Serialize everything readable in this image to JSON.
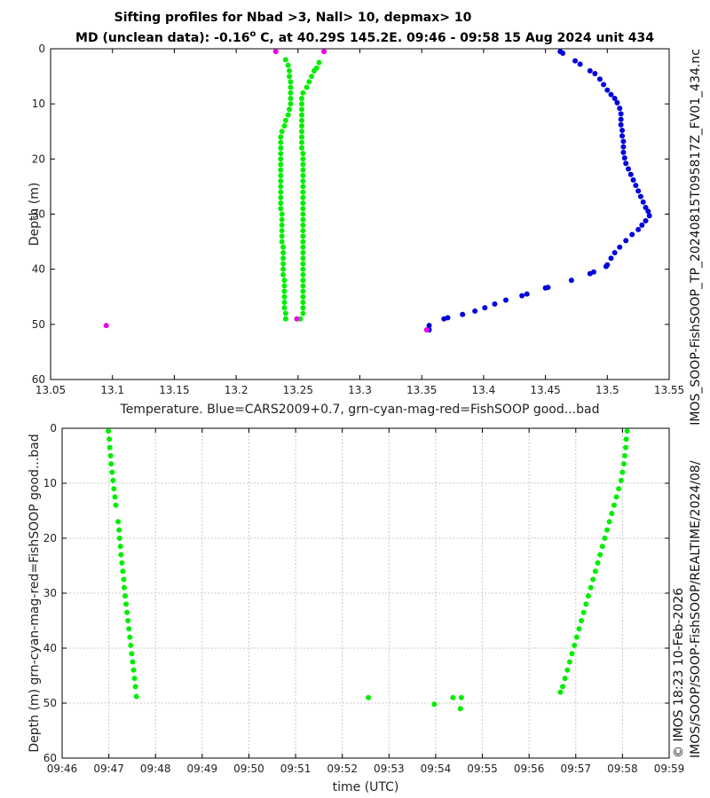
{
  "chart_data": [
    {
      "type": "scatter",
      "title_line1": "Sifting profiles for Nbad >3, Nall> 10, depmax> 10",
      "title_line2_pre": "MD (unclean data): -0.16",
      "title_line2_sup": "o",
      "title_line2_post": " C, at 40.29S 145.2E. 09:46 - 09:58 15 Aug 2024 unit 434",
      "xlabel": "Temperature. Blue=CARS2009+0.7, grn-cyan-mag-red=FishSOOP good...bad",
      "ylabel": "Depth (m)",
      "xlim": [
        13.05,
        13.55
      ],
      "ylim": [
        0,
        60
      ],
      "x_ticks": [
        13.05,
        13.1,
        13.15,
        13.2,
        13.25,
        13.3,
        13.35,
        13.4,
        13.45,
        13.5,
        13.55
      ],
      "x_tick_labels": [
        "13.05",
        "13.1",
        "13.15",
        "13.2",
        "13.25",
        "13.3",
        "13.35",
        "13.4",
        "13.45",
        "13.5",
        "13.55"
      ],
      "y_ticks": [
        0,
        10,
        20,
        30,
        40,
        50,
        60
      ],
      "y_tick_labels": [
        "0",
        "10",
        "20",
        "30",
        "40",
        "50",
        "60"
      ],
      "grid": false,
      "series": [
        {
          "name": "CARS2009+0.7",
          "color": "#0000dd",
          "points": [
            [
              13.462,
              0.5
            ],
            [
              13.464,
              0.8
            ],
            [
              13.474,
              2.2
            ],
            [
              13.478,
              2.8
            ],
            [
              13.486,
              4.0
            ],
            [
              13.49,
              4.5
            ],
            [
              13.494,
              5.5
            ],
            [
              13.497,
              6.5
            ],
            [
              13.5,
              7.5
            ],
            [
              13.503,
              8.3
            ],
            [
              13.506,
              9.0
            ],
            [
              13.508,
              9.8
            ],
            [
              13.51,
              10.8
            ],
            [
              13.511,
              11.8
            ],
            [
              13.511,
              12.8
            ],
            [
              13.511,
              13.8
            ],
            [
              13.512,
              14.8
            ],
            [
              13.512,
              15.8
            ],
            [
              13.513,
              16.8
            ],
            [
              13.513,
              17.8
            ],
            [
              13.513,
              18.8
            ],
            [
              13.514,
              19.8
            ],
            [
              13.515,
              20.8
            ],
            [
              13.517,
              21.8
            ],
            [
              13.519,
              22.8
            ],
            [
              13.521,
              23.8
            ],
            [
              13.523,
              24.8
            ],
            [
              13.525,
              25.8
            ],
            [
              13.527,
              26.8
            ],
            [
              13.529,
              27.8
            ],
            [
              13.531,
              28.8
            ],
            [
              13.533,
              29.5
            ],
            [
              13.534,
              30.3
            ],
            [
              13.531,
              31.2
            ],
            [
              13.528,
              32.0
            ],
            [
              13.525,
              32.8
            ],
            [
              13.52,
              33.7
            ],
            [
              13.515,
              34.8
            ],
            [
              13.51,
              36.0
            ],
            [
              13.506,
              37.0
            ],
            [
              13.503,
              38.0
            ],
            [
              13.5,
              39.2
            ],
            [
              13.499,
              39.5
            ],
            [
              13.489,
              40.5
            ],
            [
              13.486,
              40.8
            ],
            [
              13.471,
              42.0
            ],
            [
              13.452,
              43.3
            ],
            [
              13.45,
              43.4
            ],
            [
              13.435,
              44.5
            ],
            [
              13.431,
              44.8
            ],
            [
              13.418,
              45.6
            ],
            [
              13.409,
              46.3
            ],
            [
              13.401,
              47.0
            ],
            [
              13.393,
              47.6
            ],
            [
              13.383,
              48.2
            ],
            [
              13.371,
              48.8
            ],
            [
              13.368,
              49.0
            ],
            [
              13.356,
              50.2
            ],
            [
              13.356,
              51.0
            ]
          ]
        },
        {
          "name": "FishSOOP good (descent)",
          "color": "#00ee00",
          "points": [
            [
              13.24,
              2.0
            ],
            [
              13.242,
              3.0
            ],
            [
              13.243,
              4.0
            ],
            [
              13.243,
              5.0
            ],
            [
              13.244,
              6.0
            ],
            [
              13.244,
              7.0
            ],
            [
              13.244,
              8.0
            ],
            [
              13.244,
              9.0
            ],
            [
              13.244,
              10.0
            ],
            [
              13.243,
              11.0
            ],
            [
              13.242,
              12.0
            ],
            [
              13.24,
              13.0
            ],
            [
              13.239,
              14.0
            ],
            [
              13.237,
              15.0
            ],
            [
              13.236,
              16.0
            ],
            [
              13.236,
              17.0
            ],
            [
              13.236,
              18.0
            ],
            [
              13.236,
              19.0
            ],
            [
              13.236,
              20.0
            ],
            [
              13.236,
              21.0
            ],
            [
              13.236,
              22.0
            ],
            [
              13.236,
              23.0
            ],
            [
              13.236,
              24.0
            ],
            [
              13.236,
              25.0
            ],
            [
              13.236,
              26.0
            ],
            [
              13.236,
              27.0
            ],
            [
              13.236,
              28.0
            ],
            [
              13.236,
              29.0
            ],
            [
              13.237,
              30.0
            ],
            [
              13.237,
              31.0
            ],
            [
              13.237,
              32.0
            ],
            [
              13.237,
              33.0
            ],
            [
              13.237,
              34.0
            ],
            [
              13.237,
              35.0
            ],
            [
              13.238,
              36.0
            ],
            [
              13.238,
              37.0
            ],
            [
              13.238,
              38.0
            ],
            [
              13.238,
              39.0
            ],
            [
              13.238,
              40.0
            ],
            [
              13.238,
              41.0
            ],
            [
              13.239,
              42.0
            ],
            [
              13.239,
              43.0
            ],
            [
              13.239,
              44.0
            ],
            [
              13.239,
              45.0
            ],
            [
              13.239,
              46.0
            ],
            [
              13.239,
              47.0
            ],
            [
              13.24,
              48.0
            ],
            [
              13.24,
              49.0
            ]
          ]
        },
        {
          "name": "FishSOOP good (ascent)",
          "color": "#00ee00",
          "points": [
            [
              13.252,
              49.0
            ],
            [
              13.254,
              48.0
            ],
            [
              13.254,
              47.0
            ],
            [
              13.254,
              46.0
            ],
            [
              13.254,
              45.0
            ],
            [
              13.254,
              44.0
            ],
            [
              13.254,
              43.0
            ],
            [
              13.254,
              42.0
            ],
            [
              13.254,
              41.0
            ],
            [
              13.254,
              40.0
            ],
            [
              13.254,
              39.0
            ],
            [
              13.254,
              38.0
            ],
            [
              13.254,
              37.0
            ],
            [
              13.254,
              36.0
            ],
            [
              13.254,
              35.0
            ],
            [
              13.254,
              34.0
            ],
            [
              13.254,
              33.0
            ],
            [
              13.254,
              32.0
            ],
            [
              13.254,
              31.0
            ],
            [
              13.254,
              30.0
            ],
            [
              13.254,
              29.0
            ],
            [
              13.254,
              28.0
            ],
            [
              13.254,
              27.0
            ],
            [
              13.254,
              26.0
            ],
            [
              13.254,
              25.0
            ],
            [
              13.254,
              24.0
            ],
            [
              13.254,
              23.0
            ],
            [
              13.254,
              22.0
            ],
            [
              13.254,
              21.0
            ],
            [
              13.254,
              20.0
            ],
            [
              13.254,
              19.0
            ],
            [
              13.253,
              18.0
            ],
            [
              13.253,
              17.0
            ],
            [
              13.253,
              16.0
            ],
            [
              13.253,
              15.0
            ],
            [
              13.253,
              14.0
            ],
            [
              13.253,
              13.0
            ],
            [
              13.253,
              12.0
            ],
            [
              13.253,
              11.0
            ],
            [
              13.253,
              10.0
            ],
            [
              13.253,
              9.0
            ],
            [
              13.254,
              8.0
            ],
            [
              13.257,
              7.0
            ],
            [
              13.259,
              6.0
            ],
            [
              13.261,
              5.0
            ],
            [
              13.263,
              4.0
            ],
            [
              13.265,
              3.5
            ],
            [
              13.267,
              2.5
            ]
          ]
        },
        {
          "name": "FishSOOP bad (magenta)",
          "color": "#ee00ee",
          "points": [
            [
              13.232,
              0.5
            ],
            [
              13.271,
              0.5
            ],
            [
              13.249,
              49.0
            ],
            [
              13.095,
              50.2
            ],
            [
              13.354,
              51.0
            ]
          ]
        }
      ]
    },
    {
      "type": "scatter",
      "xlabel": "time (UTC)",
      "ylabel": "Depth (m) grn-cyan-mag-red=FishSOOP good...bad",
      "xlim": [
        0,
        13
      ],
      "ylim": [
        0,
        60
      ],
      "x_ticks": [
        0,
        1,
        2,
        3,
        4,
        5,
        6,
        7,
        8,
        9,
        10,
        11,
        12,
        13
      ],
      "x_tick_labels": [
        "09:46",
        "09:47",
        "09:48",
        "09:49",
        "09:50",
        "09:51",
        "09:52",
        "09:53",
        "09:54",
        "09:55",
        "09:56",
        "09:57",
        "09:58",
        "09:59"
      ],
      "x_units": "minutes after 09:46 UTC",
      "y_ticks": [
        0,
        10,
        20,
        30,
        40,
        50,
        60
      ],
      "y_tick_labels": [
        "0",
        "10",
        "20",
        "30",
        "40",
        "50",
        "60"
      ],
      "grid": true,
      "series": [
        {
          "name": "FishSOOP good",
          "color": "#00ee00",
          "points": [
            [
              0.99,
              0.5
            ],
            [
              1.01,
              2.0
            ],
            [
              1.02,
              3.5
            ],
            [
              1.04,
              5.0
            ],
            [
              1.05,
              6.5
            ],
            [
              1.07,
              8.0
            ],
            [
              1.09,
              9.5
            ],
            [
              1.11,
              11.0
            ],
            [
              1.13,
              12.5
            ],
            [
              1.15,
              14.0
            ],
            [
              1.2,
              17.0
            ],
            [
              1.22,
              18.5
            ],
            [
              1.23,
              20.0
            ],
            [
              1.25,
              21.5
            ],
            [
              1.26,
              23.0
            ],
            [
              1.28,
              24.5
            ],
            [
              1.3,
              26.0
            ],
            [
              1.32,
              27.5
            ],
            [
              1.33,
              29.0
            ],
            [
              1.35,
              30.5
            ],
            [
              1.37,
              32.0
            ],
            [
              1.39,
              33.5
            ],
            [
              1.41,
              35.0
            ],
            [
              1.43,
              36.5
            ],
            [
              1.45,
              38.0
            ],
            [
              1.47,
              39.5
            ],
            [
              1.49,
              41.0
            ],
            [
              1.51,
              42.5
            ],
            [
              1.53,
              44.0
            ],
            [
              1.55,
              45.5
            ],
            [
              1.57,
              47.0
            ],
            [
              1.59,
              48.8
            ],
            [
              6.56,
              49.0
            ],
            [
              7.97,
              50.2
            ],
            [
              8.37,
              49.0
            ],
            [
              8.55,
              49.0
            ],
            [
              8.53,
              51.0
            ],
            [
              10.67,
              48.0
            ],
            [
              10.72,
              47.0
            ],
            [
              10.77,
              45.5
            ],
            [
              10.82,
              44.0
            ],
            [
              10.87,
              42.5
            ],
            [
              10.92,
              41.0
            ],
            [
              10.97,
              39.5
            ],
            [
              11.02,
              38.0
            ],
            [
              11.07,
              36.5
            ],
            [
              11.12,
              35.0
            ],
            [
              11.17,
              33.5
            ],
            [
              11.22,
              32.0
            ],
            [
              11.27,
              30.5
            ],
            [
              11.32,
              29.0
            ],
            [
              11.37,
              27.5
            ],
            [
              11.42,
              26.0
            ],
            [
              11.47,
              24.5
            ],
            [
              11.52,
              23.0
            ],
            [
              11.57,
              21.5
            ],
            [
              11.62,
              20.0
            ],
            [
              11.67,
              18.5
            ],
            [
              11.72,
              17.0
            ],
            [
              11.77,
              15.5
            ],
            [
              11.82,
              14.0
            ],
            [
              11.87,
              12.5
            ],
            [
              11.92,
              11.0
            ],
            [
              11.97,
              9.5
            ],
            [
              12.0,
              8.0
            ],
            [
              12.03,
              6.5
            ],
            [
              12.05,
              5.0
            ],
            [
              12.07,
              3.5
            ],
            [
              12.08,
              2.0
            ],
            [
              12.1,
              0.5
            ]
          ]
        }
      ]
    }
  ],
  "side_text": {
    "top_right": "IMOS_SOOP-FishSOOP_TP_20240815T095817Z_FV01_434.nc",
    "bottom_right_line1": "© IMOS 18:23 10-Feb-2026",
    "bottom_right_line2": "IMOS/SOOP/SOOP-FishSOOP/REALTIME/2024/08/"
  }
}
